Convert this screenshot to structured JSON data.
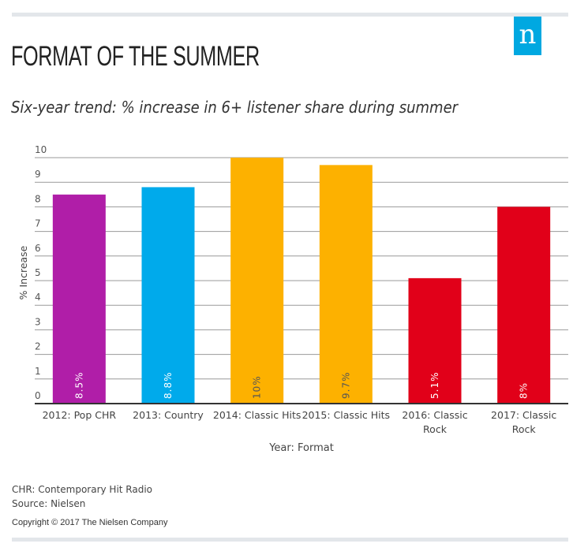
{
  "header": {
    "title": "FORMAT OF THE SUMMER",
    "subtitle": "Six-year trend: % increase in 6+ listener share during summer",
    "logo": "n"
  },
  "chart_data": {
    "type": "bar",
    "categories": [
      "2012: Pop CHR",
      "2013: Country",
      "2014: Classic Hits",
      "2015: Classic Hits",
      "2016: Classic Rock",
      "2017: Classic Rock"
    ],
    "category_lines": [
      [
        "2012: Pop CHR"
      ],
      [
        "2013: Country"
      ],
      [
        "2014: Classic Hits"
      ],
      [
        "2015: Classic Hits"
      ],
      [
        "2016: Classic",
        "Rock"
      ],
      [
        "2017: Classic",
        "Rock"
      ]
    ],
    "values": [
      8.5,
      8.8,
      10,
      9.7,
      5.1,
      8
    ],
    "data_labels": [
      "8.5%",
      "8.8%",
      "10%",
      "9.7%",
      "5.1%",
      "8%"
    ],
    "colors": [
      "#b01ea8",
      "#00aaeb",
      "#fdb100",
      "#fdb100",
      "#e10019",
      "#e10019"
    ],
    "label_colors": [
      "#ffffff",
      "#ffffff",
      "#555555",
      "#555555",
      "#ffffff",
      "#ffffff"
    ],
    "xlabel": "Year: Format",
    "ylabel": "% Increase",
    "ylim": [
      0,
      10
    ],
    "yticks": [
      0,
      1,
      2,
      3,
      4,
      5,
      6,
      7,
      8,
      9,
      10
    ],
    "grid": true
  },
  "footer": {
    "note": "CHR: Contemporary Hit Radio",
    "source": "Source: Nielsen",
    "copyright": "Copyright © 2017 The Nielsen Company"
  }
}
